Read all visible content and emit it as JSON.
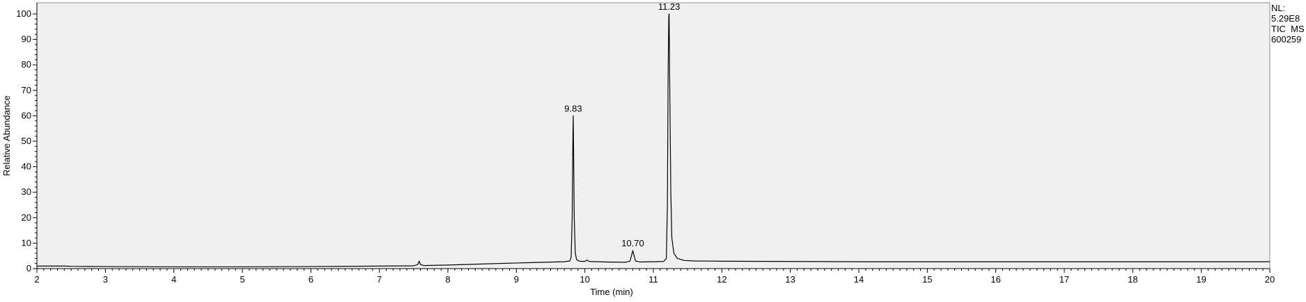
{
  "chart_data": {
    "type": "line",
    "title": "",
    "xlabel": "Time (min)",
    "ylabel": "Relative Abundance",
    "xlim": [
      2,
      20
    ],
    "ylim": [
      0,
      100
    ],
    "x_ticks": [
      2,
      3,
      4,
      5,
      6,
      7,
      8,
      9,
      10,
      11,
      12,
      13,
      14,
      15,
      16,
      17,
      18,
      19,
      20
    ],
    "y_ticks": [
      0,
      10,
      20,
      30,
      40,
      50,
      60,
      70,
      80,
      90,
      100
    ],
    "grid": false,
    "series": [
      {
        "values": [
          [
            2.0,
            1.0
          ],
          [
            2.4,
            1.0
          ],
          [
            2.5,
            0.9
          ],
          [
            3.0,
            0.8
          ],
          [
            4.0,
            0.7
          ],
          [
            5.0,
            0.7
          ],
          [
            6.0,
            0.8
          ],
          [
            7.0,
            1.0
          ],
          [
            7.5,
            1.1
          ],
          [
            7.56,
            1.6
          ],
          [
            7.58,
            2.9
          ],
          [
            7.6,
            1.6
          ],
          [
            7.65,
            1.2
          ],
          [
            8.0,
            1.4
          ],
          [
            8.5,
            1.8
          ],
          [
            9.0,
            2.2
          ],
          [
            9.4,
            2.5
          ],
          [
            9.7,
            2.7
          ],
          [
            9.78,
            3.0
          ],
          [
            9.8,
            4.5
          ],
          [
            9.815,
            20.0
          ],
          [
            9.825,
            50.0
          ],
          [
            9.83,
            60.0
          ],
          [
            9.835,
            48.0
          ],
          [
            9.845,
            20.0
          ],
          [
            9.86,
            6.0
          ],
          [
            9.88,
            3.5
          ],
          [
            9.92,
            2.9
          ],
          [
            10.0,
            2.8
          ],
          [
            10.03,
            3.4
          ],
          [
            10.06,
            2.8
          ],
          [
            10.3,
            2.6
          ],
          [
            10.6,
            2.5
          ],
          [
            10.66,
            3.0
          ],
          [
            10.69,
            6.0
          ],
          [
            10.7,
            7.1
          ],
          [
            10.71,
            6.0
          ],
          [
            10.74,
            3.0
          ],
          [
            10.8,
            2.6
          ],
          [
            11.0,
            2.7
          ],
          [
            11.15,
            2.8
          ],
          [
            11.19,
            4.0
          ],
          [
            11.205,
            25.0
          ],
          [
            11.215,
            74.0
          ],
          [
            11.225,
            99.0
          ],
          [
            11.23,
            100.0
          ],
          [
            11.24,
            70.0
          ],
          [
            11.255,
            30.0
          ],
          [
            11.27,
            12.0
          ],
          [
            11.3,
            6.0
          ],
          [
            11.35,
            4.0
          ],
          [
            11.45,
            3.2
          ],
          [
            11.6,
            3.0
          ],
          [
            12.0,
            2.9
          ],
          [
            13.0,
            2.8
          ],
          [
            14.0,
            2.7
          ],
          [
            15.0,
            2.7
          ],
          [
            16.0,
            2.7
          ],
          [
            17.0,
            2.7
          ],
          [
            18.0,
            2.7
          ],
          [
            19.0,
            2.7
          ],
          [
            20.0,
            2.7
          ]
        ]
      }
    ],
    "peak_labels": [
      {
        "x": 9.83,
        "y": 60.0,
        "label": "9.83"
      },
      {
        "x": 10.7,
        "y": 7.1,
        "label": "10.70"
      },
      {
        "x": 11.23,
        "y": 100.0,
        "label": "11.23"
      }
    ],
    "side_info": [
      "NL:",
      "5.29E8",
      "TIC  MS",
      "600259"
    ],
    "colors": {
      "plot_background": "#f0f0f0",
      "trace": "#000000",
      "axis": "#000000"
    }
  }
}
